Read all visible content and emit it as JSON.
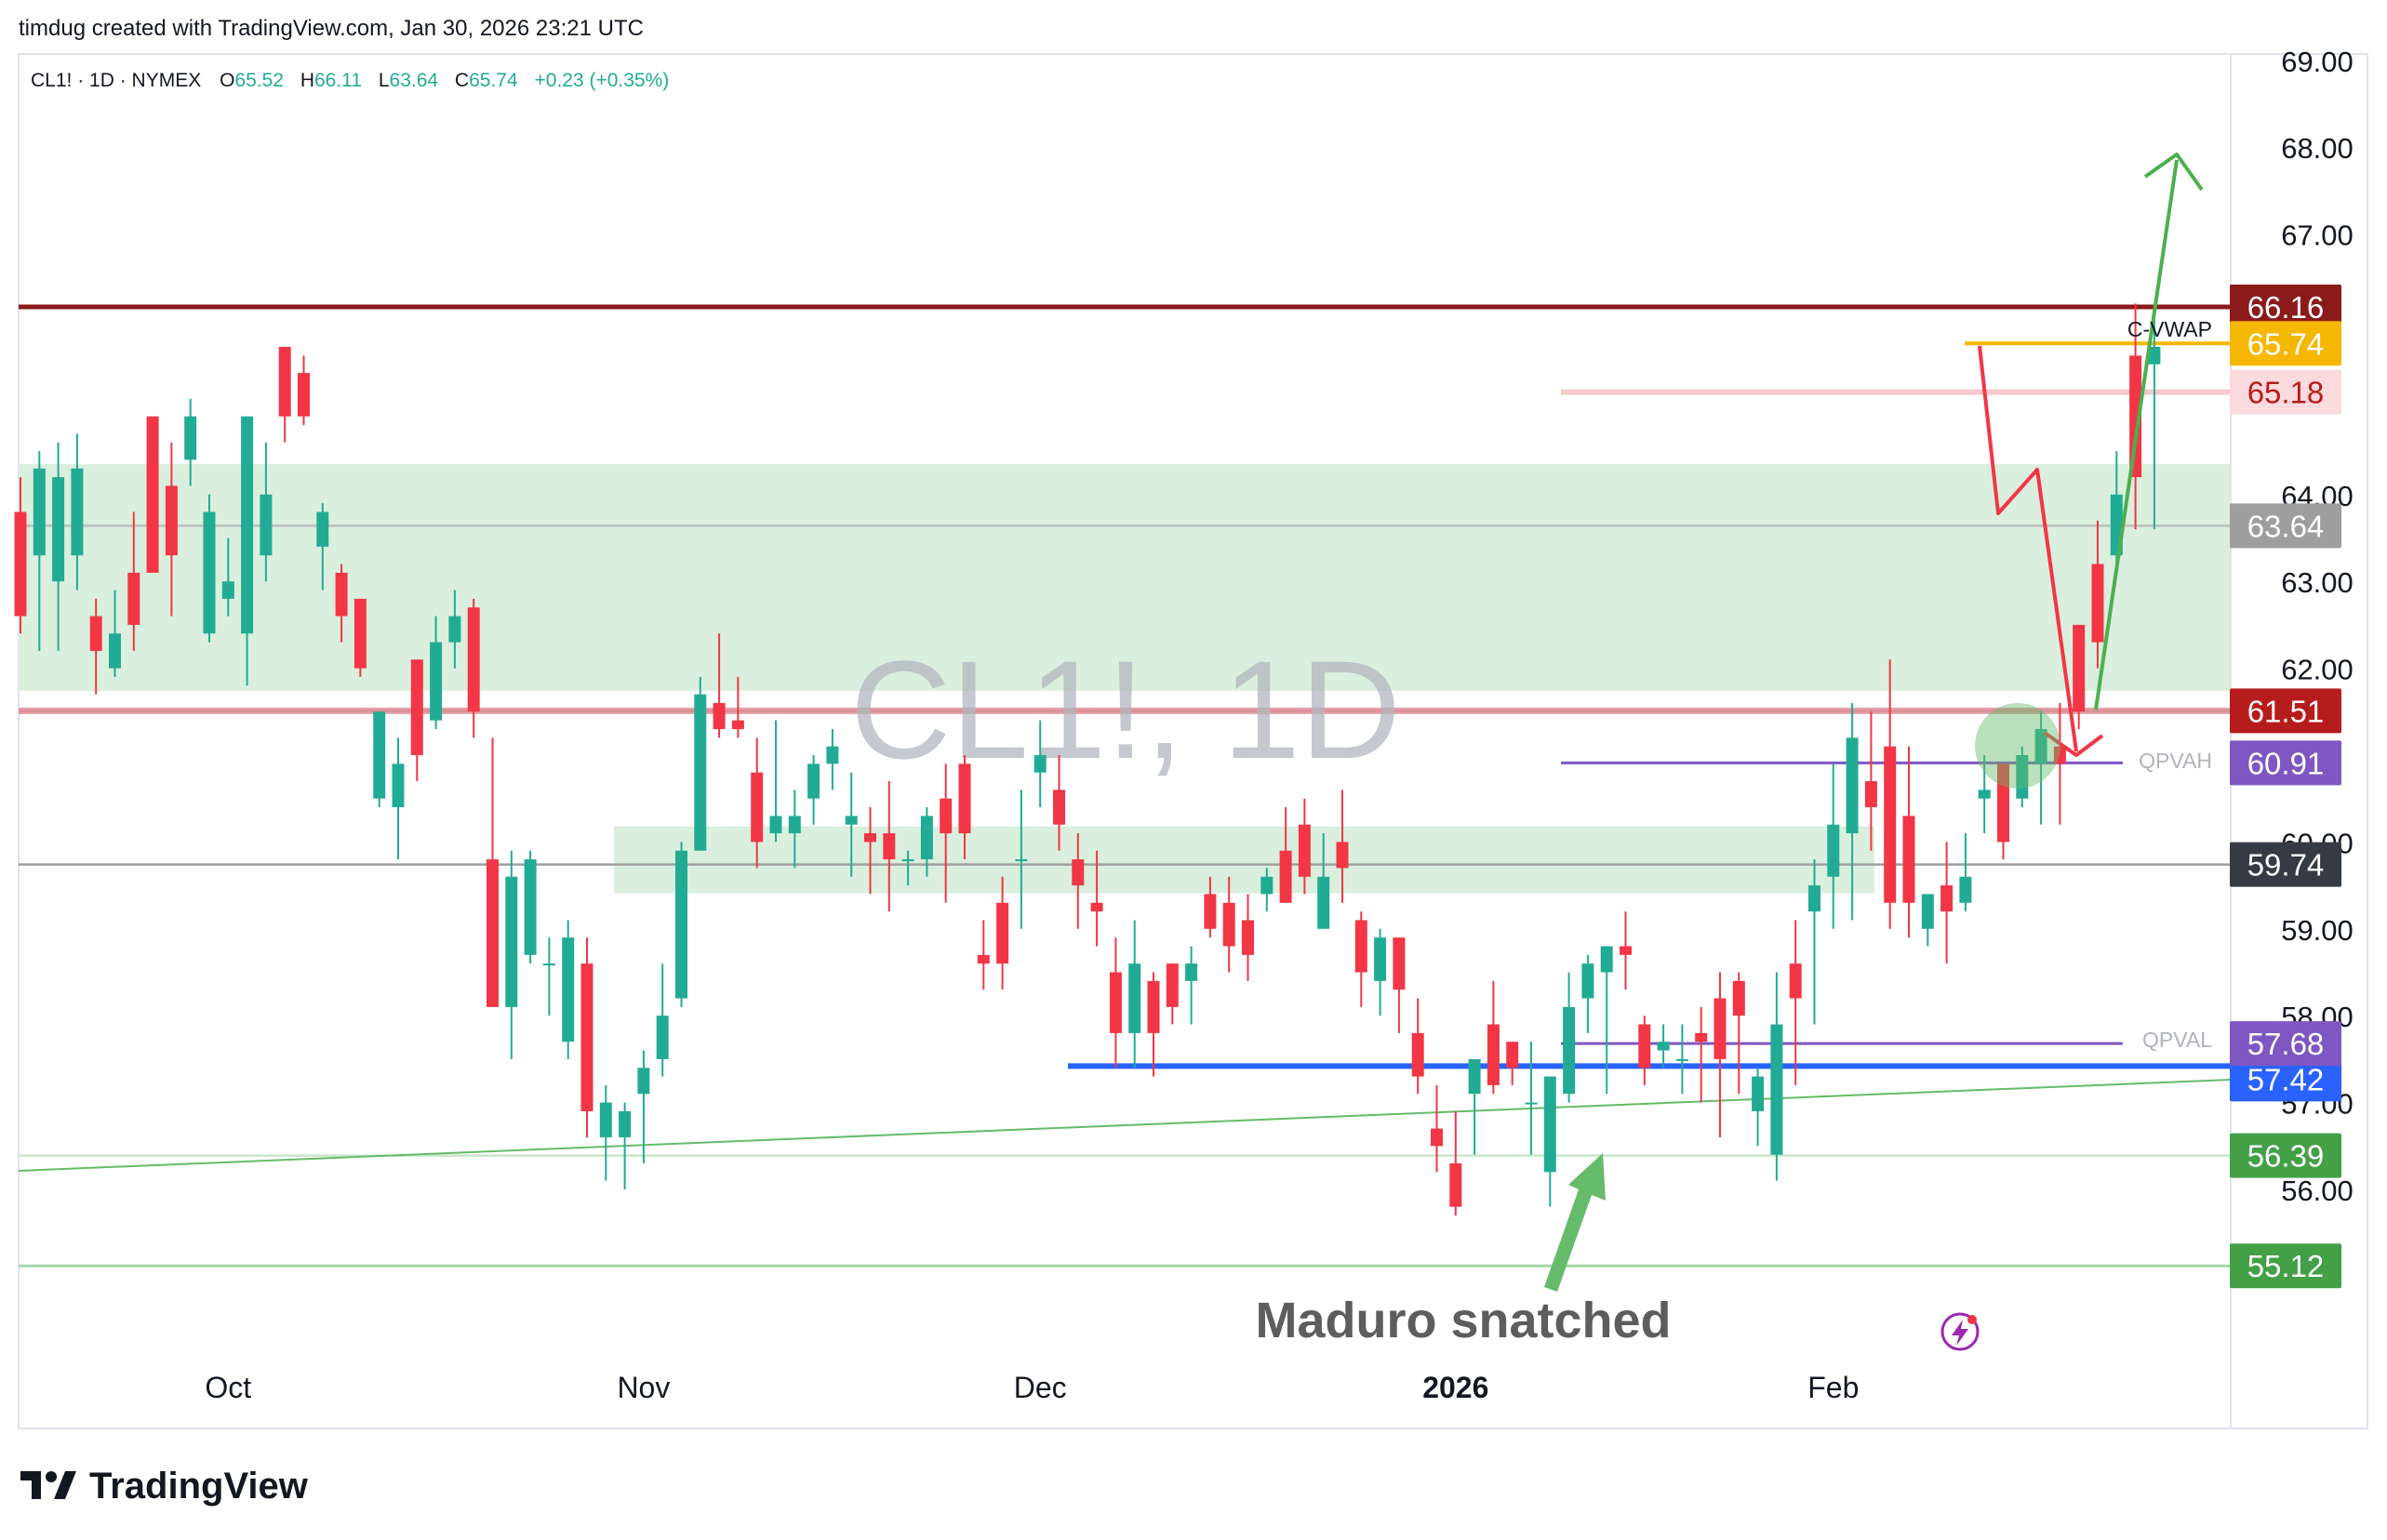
{
  "header": {
    "credit": "timdug created with TradingView.com, Jan 30, 2026 23:21 UTC",
    "symbol": "CL1! · 1D · NYMEX",
    "o_label": "O",
    "o_value": "65.52",
    "h_label": "H",
    "h_value": "66.11",
    "l_label": "L",
    "l_value": "63.64",
    "c_label": "C",
    "c_value": "65.74",
    "change": "+0.23 (+0.35%)"
  },
  "footer": {
    "brand": "TradingView"
  },
  "watermark": "CL1!, 1D",
  "annotation": "Maduro snatched",
  "colors": {
    "up": "#22ab94",
    "down": "#f23645",
    "zone": "#d6edd9",
    "resistance": "#8b1a1a",
    "vwap": "#f5b700",
    "support_blue": "#2962ff",
    "qpv": "#7e57c2",
    "trendline": "#66bb6a",
    "arrow_green": "#4caf50",
    "arrow_red": "#f23645"
  },
  "chart_data": {
    "type": "candlestick",
    "ylim": [
      54.0,
      69.25
    ],
    "y_ticks": [
      "69.00",
      "68.00",
      "67.00",
      "64.00",
      "63.00",
      "62.00",
      "60.00",
      "59.00",
      "58.00",
      "57.00",
      "56.00"
    ],
    "x_labels": [
      {
        "label": "Oct",
        "bar": 11
      },
      {
        "label": "Nov",
        "bar": 33
      },
      {
        "label": "Dec",
        "bar": 54
      },
      {
        "label": "2026",
        "bar": 76
      },
      {
        "label": "Feb",
        "bar": 96
      }
    ],
    "candles": [
      [
        63.8,
        62.6,
        64.2,
        62.4
      ],
      [
        63.3,
        64.3,
        64.5,
        62.2
      ],
      [
        63.0,
        64.2,
        64.6,
        62.2
      ],
      [
        63.3,
        64.3,
        64.7,
        62.9
      ],
      [
        62.6,
        62.2,
        62.8,
        61.7
      ],
      [
        62.0,
        62.4,
        62.9,
        61.9
      ],
      [
        63.1,
        62.5,
        63.8,
        62.2
      ],
      [
        64.9,
        63.1,
        64.6,
        63.2
      ],
      [
        64.1,
        63.3,
        64.6,
        62.6
      ],
      [
        64.4,
        64.9,
        65.1,
        64.1
      ],
      [
        62.4,
        63.8,
        64.0,
        62.3
      ],
      [
        62.8,
        63.0,
        63.5,
        62.6
      ],
      [
        62.4,
        64.9,
        64.9,
        61.8
      ],
      [
        63.3,
        64.0,
        64.6,
        63.0
      ],
      [
        65.7,
        64.9,
        65.3,
        64.6
      ],
      [
        65.4,
        64.9,
        65.6,
        64.8
      ],
      [
        63.4,
        63.8,
        63.9,
        62.9
      ],
      [
        63.1,
        62.6,
        63.2,
        62.3
      ],
      [
        62.8,
        62.0,
        62.3,
        61.9
      ],
      [
        60.5,
        61.5,
        61.4,
        60.4
      ],
      [
        60.4,
        60.9,
        61.2,
        59.8
      ],
      [
        62.1,
        61.0,
        61.4,
        60.7
      ],
      [
        61.4,
        62.3,
        62.6,
        61.3
      ],
      [
        62.3,
        62.6,
        62.9,
        62.0
      ],
      [
        62.7,
        61.5,
        62.8,
        61.2
      ],
      [
        59.8,
        58.1,
        61.2,
        58.1
      ],
      [
        58.1,
        59.6,
        59.9,
        57.5
      ],
      [
        58.7,
        59.8,
        59.9,
        58.6
      ],
      [
        58.6,
        58.6,
        58.9,
        58.0
      ],
      [
        57.7,
        58.9,
        59.1,
        57.5
      ],
      [
        58.6,
        56.9,
        58.9,
        56.6
      ],
      [
        56.6,
        57.0,
        57.2,
        56.1
      ],
      [
        56.6,
        56.9,
        57.0,
        56.0
      ],
      [
        57.1,
        57.4,
        57.6,
        56.3
      ],
      [
        57.5,
        58.0,
        58.6,
        57.3
      ],
      [
        58.2,
        59.9,
        60.0,
        58.1
      ],
      [
        59.9,
        61.7,
        61.9,
        60.4
      ],
      [
        61.6,
        61.3,
        62.4,
        61.2
      ],
      [
        61.4,
        61.3,
        61.9,
        61.2
      ],
      [
        60.8,
        60.0,
        61.2,
        59.7
      ],
      [
        60.1,
        60.3,
        61.4,
        60.0
      ],
      [
        60.1,
        60.3,
        60.6,
        59.7
      ],
      [
        60.5,
        60.9,
        61.0,
        60.2
      ],
      [
        60.9,
        61.1,
        61.3,
        60.6
      ],
      [
        60.2,
        60.3,
        60.8,
        59.6
      ],
      [
        60.1,
        60.0,
        60.4,
        59.4
      ],
      [
        60.1,
        59.8,
        60.7,
        59.2
      ],
      [
        59.8,
        59.8,
        59.9,
        59.5
      ],
      [
        59.8,
        60.3,
        60.4,
        59.6
      ],
      [
        60.5,
        60.1,
        60.9,
        59.3
      ],
      [
        60.9,
        60.1,
        61.0,
        59.8
      ],
      [
        58.7,
        58.6,
        59.1,
        58.3
      ],
      [
        59.3,
        58.6,
        59.6,
        58.3
      ],
      [
        59.8,
        59.8,
        60.6,
        59.0
      ],
      [
        60.8,
        61.0,
        61.4,
        60.4
      ],
      [
        60.6,
        60.2,
        61.0,
        59.9
      ],
      [
        59.8,
        59.5,
        60.1,
        59.0
      ],
      [
        59.3,
        59.2,
        59.9,
        58.8
      ],
      [
        58.5,
        57.8,
        58.9,
        57.4
      ],
      [
        57.8,
        58.6,
        59.1,
        57.4
      ],
      [
        58.4,
        57.8,
        58.5,
        57.3
      ],
      [
        58.6,
        58.1,
        58.6,
        57.9
      ],
      [
        58.4,
        58.6,
        58.8,
        57.9
      ],
      [
        59.4,
        59.0,
        59.6,
        58.9
      ],
      [
        59.3,
        58.8,
        59.6,
        58.5
      ],
      [
        59.1,
        58.7,
        59.4,
        58.4
      ],
      [
        59.4,
        59.6,
        59.7,
        59.2
      ],
      [
        59.9,
        59.3,
        60.4,
        59.3
      ],
      [
        60.2,
        59.6,
        60.5,
        59.4
      ],
      [
        59.0,
        59.6,
        60.1,
        59.0
      ],
      [
        60.0,
        59.7,
        60.6,
        59.3
      ],
      [
        59.1,
        58.5,
        59.2,
        58.1
      ],
      [
        58.4,
        58.9,
        59.0,
        58.0
      ],
      [
        58.9,
        58.3,
        58.8,
        57.8
      ],
      [
        57.8,
        57.3,
        58.2,
        57.1
      ],
      [
        56.7,
        56.5,
        57.2,
        56.2
      ],
      [
        56.3,
        55.8,
        56.9,
        55.7
      ],
      [
        57.1,
        57.5,
        57.1,
        56.4
      ],
      [
        57.9,
        57.2,
        58.4,
        57.1
      ],
      [
        57.7,
        57.4,
        57.7,
        57.2
      ],
      [
        57.0,
        57.0,
        57.7,
        56.4
      ],
      [
        56.2,
        57.3,
        57.3,
        55.8
      ],
      [
        57.1,
        58.1,
        58.5,
        57.0
      ],
      [
        58.2,
        58.6,
        58.7,
        57.8
      ],
      [
        58.5,
        58.8,
        58.8,
        57.1
      ],
      [
        58.8,
        58.7,
        59.2,
        58.3
      ],
      [
        57.9,
        57.4,
        58.0,
        57.2
      ],
      [
        57.6,
        57.7,
        57.9,
        57.4
      ],
      [
        57.5,
        57.5,
        57.9,
        57.1
      ],
      [
        57.8,
        57.7,
        58.1,
        57.0
      ],
      [
        58.2,
        57.5,
        58.5,
        56.6
      ],
      [
        58.4,
        58.0,
        58.5,
        57.1
      ],
      [
        56.9,
        57.3,
        57.4,
        56.5
      ],
      [
        56.4,
        57.9,
        58.5,
        56.1
      ],
      [
        58.6,
        58.2,
        59.1,
        57.2
      ],
      [
        59.2,
        59.5,
        59.8,
        57.9
      ],
      [
        59.6,
        60.2,
        60.9,
        59.0
      ],
      [
        60.1,
        61.2,
        61.6,
        59.1
      ],
      [
        60.7,
        60.4,
        61.5,
        59.9
      ],
      [
        61.1,
        59.3,
        62.1,
        59.0
      ],
      [
        60.3,
        59.3,
        61.1,
        58.9
      ],
      [
        59.0,
        59.4,
        59.3,
        58.8
      ],
      [
        59.5,
        59.2,
        60.0,
        58.6
      ],
      [
        59.3,
        59.6,
        60.1,
        59.2
      ],
      [
        60.5,
        60.6,
        61.0,
        60.1
      ],
      [
        60.9,
        60.0,
        60.8,
        59.8
      ],
      [
        60.5,
        61.0,
        61.1,
        60.4
      ],
      [
        60.9,
        61.3,
        61.5,
        60.2
      ],
      [
        61.1,
        60.9,
        61.6,
        60.2
      ],
      [
        62.5,
        61.5,
        62.5,
        61.3
      ],
      [
        63.2,
        62.3,
        63.7,
        62.0
      ],
      [
        63.3,
        64.0,
        64.5,
        63.1
      ],
      [
        65.6,
        64.2,
        66.2,
        63.6
      ],
      [
        65.5,
        65.7,
        66.1,
        63.6
      ]
    ],
    "levels": [
      {
        "value": 66.16,
        "label": "66.16",
        "color": "#8b1a1a"
      },
      {
        "value": 65.74,
        "label": "65.74",
        "color": "#f5b700",
        "name": "C-VWAP"
      },
      {
        "value": 65.18,
        "label": "65.18",
        "color": "#f8c8cc"
      },
      {
        "value": 63.64,
        "label": "63.64",
        "color": "#9e9e9e"
      },
      {
        "value": 61.51,
        "label": "61.51",
        "color": "#8b1a1a"
      },
      {
        "value": 60.91,
        "label": "60.91",
        "color": "#7e57c2",
        "name": "QPVAH"
      },
      {
        "value": 59.74,
        "label": "59.74",
        "color": "#3c3c3c"
      },
      {
        "value": 57.68,
        "label": "57.68",
        "color": "#7e57c2",
        "name": "QPVAL"
      },
      {
        "value": 57.42,
        "label": "57.42",
        "color": "#2962ff"
      },
      {
        "value": 56.39,
        "label": "56.39",
        "color": "#43a047"
      },
      {
        "value": 55.12,
        "label": "55.12",
        "color": "#43a047"
      }
    ],
    "zones": [
      {
        "from": 61.74,
        "to": 64.35
      },
      {
        "from": 59.41,
        "to": 60.18
      }
    ]
  }
}
